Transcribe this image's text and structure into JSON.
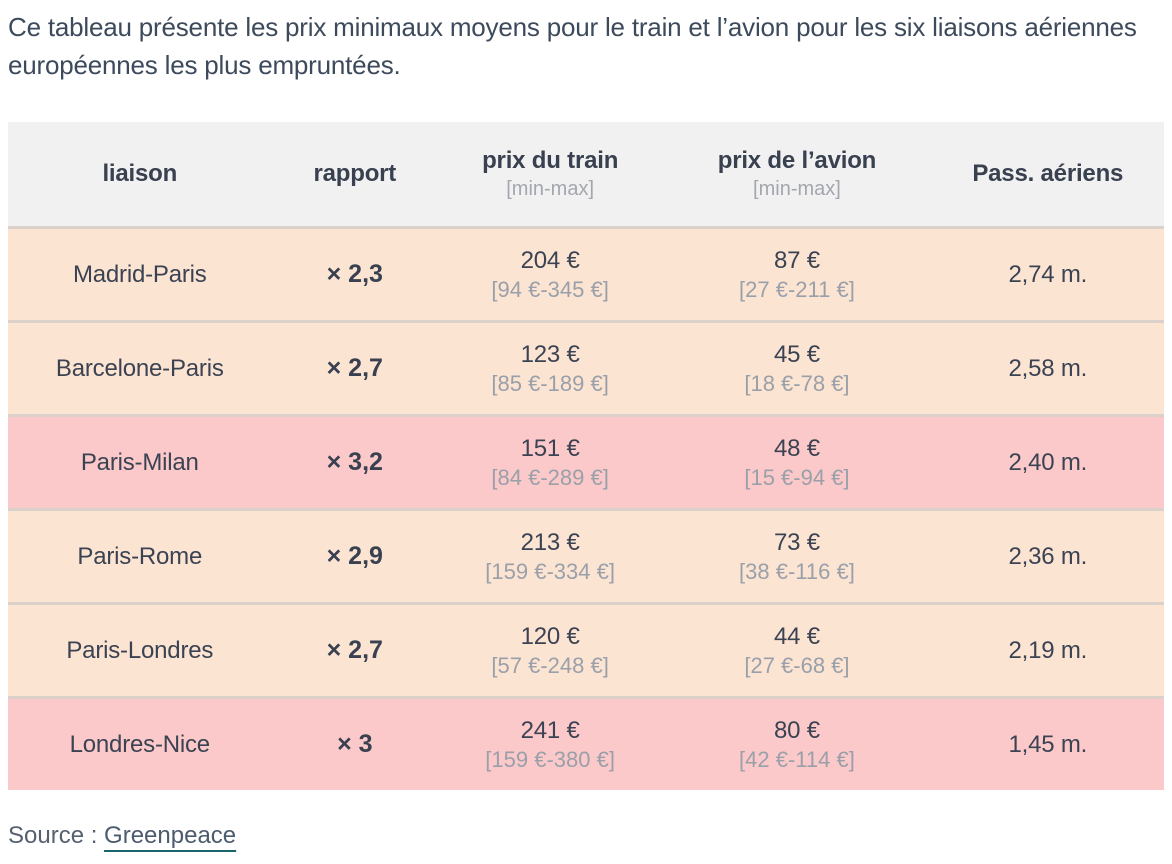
{
  "intro": "Ce tableau présente les prix minimaux moyens pour le train et l’avion pour les six liaisons aériennes européennes les plus empruntées.",
  "colors": {
    "header_bg": "#f1f1f2",
    "row_peach": "#fce4d3",
    "row_pink": "#fbc9c9",
    "separator": "#dbd1ca",
    "text_dark": "#39404f",
    "text_gray": "#9aa0a9",
    "link_underline_teal": "#19646a"
  },
  "table": {
    "header": {
      "liaison": "liaison",
      "rapport": "rapport",
      "train": "prix du train",
      "train_sub": "[min-max]",
      "avion": "prix de l’avion",
      "avion_sub": "[min-max]",
      "passengers": "Pass. aériens"
    },
    "rows": [
      {
        "liaison": "Madrid-Paris",
        "rapport": "× 2,3",
        "train": "204 €",
        "train_range": "[94 €-345 €]",
        "avion": "87 €",
        "avion_range": "[27 €-211 €]",
        "passengers": "2,74 m.",
        "highlight": false
      },
      {
        "liaison": "Barcelone-Paris",
        "rapport": "× 2,7",
        "train": "123 €",
        "train_range": "[85 €-189 €]",
        "avion": "45 €",
        "avion_range": "[18 €-78 €]",
        "passengers": "2,58 m.",
        "highlight": false
      },
      {
        "liaison": "Paris-Milan",
        "rapport": "× 3,2",
        "train": "151 €",
        "train_range": "[84 €-289 €]",
        "avion": "48 €",
        "avion_range": "[15 €-94 €]",
        "passengers": "2,40 m.",
        "highlight": true
      },
      {
        "liaison": "Paris-Rome",
        "rapport": "× 2,9",
        "train": "213 €",
        "train_range": "[159 €-334 €]",
        "avion": "73 €",
        "avion_range": "[38 €-116 €]",
        "passengers": "2,36 m.",
        "highlight": false
      },
      {
        "liaison": "Paris-Londres",
        "rapport": "× 2,7",
        "train": "120 €",
        "train_range": "[57 €-248 €]",
        "avion": "44 €",
        "avion_range": "[27 €-68 €]",
        "passengers": "2,19 m.",
        "highlight": false
      },
      {
        "liaison": "Londres-Nice",
        "rapport": "× 3",
        "train": "241 €",
        "train_range": "[159 €-380 €]",
        "avion": "80 €",
        "avion_range": "[42 €-114 €]",
        "passengers": "1,45 m.",
        "highlight": true
      }
    ]
  },
  "source": {
    "label": "Source : ",
    "link": "Greenpeace"
  },
  "chart_data": {
    "type": "table",
    "title": "Ce tableau présente les prix minimaux moyens pour le train et l’avion pour les six liaisons aériennes européennes les plus empruntées.",
    "columns": [
      "liaison",
      "rapport",
      "prix du train [min-max] (€)",
      "prix de l’avion [min-max] (€)",
      "Pass. aériens (millions)"
    ],
    "rows": [
      {
        "liaison": "Madrid-Paris",
        "rapport": 2.3,
        "train_eur": 204,
        "train_min": 94,
        "train_max": 345,
        "avion_eur": 87,
        "avion_min": 27,
        "avion_max": 211,
        "passagers_millions": 2.74
      },
      {
        "liaison": "Barcelone-Paris",
        "rapport": 2.7,
        "train_eur": 123,
        "train_min": 85,
        "train_max": 189,
        "avion_eur": 45,
        "avion_min": 18,
        "avion_max": 78,
        "passagers_millions": 2.58
      },
      {
        "liaison": "Paris-Milan",
        "rapport": 3.2,
        "train_eur": 151,
        "train_min": 84,
        "train_max": 289,
        "avion_eur": 48,
        "avion_min": 15,
        "avion_max": 94,
        "passagers_millions": 2.4
      },
      {
        "liaison": "Paris-Rome",
        "rapport": 2.9,
        "train_eur": 213,
        "train_min": 159,
        "train_max": 334,
        "avion_eur": 73,
        "avion_min": 38,
        "avion_max": 116,
        "passagers_millions": 2.36
      },
      {
        "liaison": "Paris-Londres",
        "rapport": 2.7,
        "train_eur": 120,
        "train_min": 57,
        "train_max": 248,
        "avion_eur": 44,
        "avion_min": 27,
        "avion_max": 68,
        "passagers_millions": 2.19
      },
      {
        "liaison": "Londres-Nice",
        "rapport": 3.0,
        "train_eur": 241,
        "train_min": 159,
        "train_max": 380,
        "avion_eur": 80,
        "avion_min": 42,
        "avion_max": 114,
        "passagers_millions": 1.45
      }
    ],
    "source": "Greenpeace",
    "highlighted_rows": [
      "Paris-Milan",
      "Londres-Nice"
    ]
  }
}
